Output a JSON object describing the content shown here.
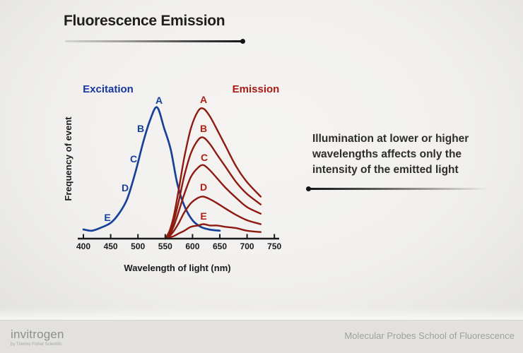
{
  "slide": {
    "title": "Fluorescence Emission",
    "note_lines": [
      "Illumination at lower or higher",
      "wavelengths affects only the",
      "intensity of the emitted light"
    ]
  },
  "chart_data": {
    "type": "line",
    "title": "",
    "xlabel": "Wavelength of light (nm)",
    "ylabel": "Frequency of event",
    "xlim": [
      390,
      760
    ],
    "ylim": [
      0,
      1.1
    ],
    "grid": false,
    "x_ticks": [
      400,
      450,
      500,
      550,
      600,
      650,
      700,
      750
    ],
    "group_headers": [
      {
        "label": "Excitation",
        "color": "#16379b"
      },
      {
        "label": "Emission",
        "color": "#a51b12"
      }
    ],
    "curve_labels": [
      "A",
      "B",
      "C",
      "D",
      "E"
    ],
    "series": [
      {
        "name": "Excitation",
        "color": "#17409b",
        "x": [
          400,
          415,
          430,
          450,
          465,
          480,
          495,
          510,
          522,
          535,
          548,
          560,
          572,
          585,
          600,
          615,
          630,
          650
        ],
        "values": [
          0.07,
          0.06,
          0.08,
          0.12,
          0.19,
          0.3,
          0.5,
          0.74,
          0.9,
          1.0,
          0.84,
          0.68,
          0.42,
          0.25,
          0.14,
          0.09,
          0.07,
          0.06
        ]
      },
      {
        "name": "Emission A",
        "color": "#8e1a10",
        "x": [
          550,
          558,
          566,
          575,
          585,
          597,
          610,
          620,
          632,
          645,
          660,
          680,
          700,
          725
        ],
        "values": [
          0.0,
          0.06,
          0.18,
          0.38,
          0.62,
          0.84,
          0.97,
          0.99,
          0.93,
          0.83,
          0.71,
          0.55,
          0.43,
          0.32
        ]
      },
      {
        "name": "Emission B",
        "color": "#8e1a10",
        "x": [
          550,
          558,
          566,
          575,
          585,
          597,
          610,
          620,
          632,
          645,
          660,
          680,
          700,
          725
        ],
        "values": [
          0.0,
          0.05,
          0.14,
          0.29,
          0.48,
          0.65,
          0.75,
          0.77,
          0.72,
          0.64,
          0.55,
          0.43,
          0.34,
          0.26
        ]
      },
      {
        "name": "Emission C",
        "color": "#8e1a10",
        "x": [
          550,
          558,
          566,
          575,
          585,
          597,
          610,
          620,
          632,
          645,
          660,
          680,
          700,
          725
        ],
        "values": [
          0.0,
          0.03,
          0.1,
          0.21,
          0.34,
          0.47,
          0.54,
          0.56,
          0.52,
          0.46,
          0.39,
          0.31,
          0.24,
          0.19
        ]
      },
      {
        "name": "Emission D",
        "color": "#8e1a10",
        "x": [
          550,
          558,
          566,
          575,
          585,
          597,
          610,
          620,
          632,
          645,
          660,
          680,
          700,
          725
        ],
        "values": [
          0.0,
          0.02,
          0.06,
          0.12,
          0.2,
          0.27,
          0.31,
          0.32,
          0.3,
          0.27,
          0.23,
          0.18,
          0.14,
          0.11
        ]
      },
      {
        "name": "Emission E",
        "color": "#8e1a10",
        "x": [
          550,
          558,
          566,
          575,
          585,
          597,
          610,
          620,
          632,
          645,
          660,
          680,
          700,
          725
        ],
        "values": [
          0.0,
          0.01,
          0.02,
          0.04,
          0.06,
          0.09,
          0.1,
          0.11,
          0.1,
          0.1,
          0.09,
          0.08,
          0.06,
          0.05
        ]
      }
    ],
    "annotation_colors": {
      "excitation_letter": "#17409b",
      "emission_letter": "#b02015"
    }
  },
  "footer": {
    "brand": "invitrogen",
    "brand_sub": "by Thermo Fisher Scientific",
    "right_text": "Molecular Probes School of Fluorescence"
  }
}
